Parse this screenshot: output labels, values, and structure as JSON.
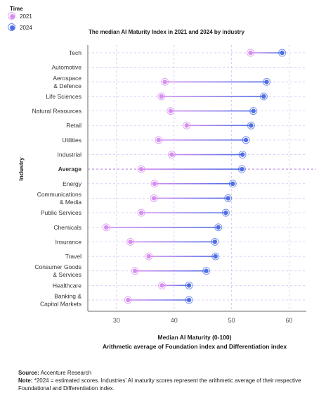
{
  "legend": {
    "title": "Time",
    "items": [
      {
        "label": "2021",
        "color": "#d78ef0"
      },
      {
        "label": "2024",
        "color": "#4f6ee6"
      }
    ]
  },
  "footer": {
    "source_label": "Source:",
    "source_text": "Accenture Research",
    "note_label": "Note:",
    "note_text": "*2024 = estimated scores. Industries' AI maturity scores represent the arithmetic average of their respective Foundational and Differentiation index."
  },
  "chart_data": {
    "type": "dumbbell",
    "title": "The median AI Maturity Index in 2021 and 2024 by industry",
    "xlabel": "Median AI Maturity (0-100)",
    "xlabel_sub": "Arithmetic average of  Foundation index and Differentiation index",
    "ylabel": "Industry",
    "xlim": [
      25,
      63
    ],
    "xticks": [
      30,
      40,
      50,
      60
    ],
    "grid": true,
    "legend_position": "top-left",
    "highlight_category": "Average",
    "series": [
      {
        "name": "2021",
        "color": "#d78ef0"
      },
      {
        "name": "2024",
        "color": "#4f6ee6"
      }
    ],
    "categories": [
      {
        "label": [
          "Tech"
        ],
        "v2021": 53.3,
        "v2024": 58.8
      },
      {
        "label": [
          "Automotive"
        ],
        "v2021": null,
        "v2024": null
      },
      {
        "label": [
          "Aerospace",
          "& Defence"
        ],
        "v2021": 38.4,
        "v2024": 56.1
      },
      {
        "label": [
          "Life Sciences"
        ],
        "v2021": 37.8,
        "v2024": 55.6
      },
      {
        "label": [
          "Natural Resources"
        ],
        "v2021": 39.4,
        "v2024": 53.8
      },
      {
        "label": [
          "Retail"
        ],
        "v2021": 42.2,
        "v2024": 53.4
      },
      {
        "label": [
          "Utilities"
        ],
        "v2021": 37.3,
        "v2024": 52.5
      },
      {
        "label": [
          "Industrial"
        ],
        "v2021": 39.6,
        "v2024": 51.9
      },
      {
        "label": [
          "Average"
        ],
        "v2021": 34.3,
        "v2024": 51.8
      },
      {
        "label": [
          "Energy"
        ],
        "v2021": 36.6,
        "v2024": 50.2
      },
      {
        "label": [
          "Communications",
          "& Media"
        ],
        "v2021": 36.5,
        "v2024": 49.4
      },
      {
        "label": [
          "Public Services"
        ],
        "v2021": 34.3,
        "v2024": 49.0
      },
      {
        "label": [
          "Chemicals"
        ],
        "v2021": 28.2,
        "v2024": 47.7
      },
      {
        "label": [
          "Insurance"
        ],
        "v2021": 32.4,
        "v2024": 47.1
      },
      {
        "label": [
          "Travel"
        ],
        "v2021": 35.6,
        "v2024": 47.2
      },
      {
        "label": [
          "Consumer Goods",
          "& Services"
        ],
        "v2021": 33.2,
        "v2024": 45.6
      },
      {
        "label": [
          "Healthcare"
        ],
        "v2021": 37.9,
        "v2024": 42.6
      },
      {
        "label": [
          "Banking &",
          "Capital Markets"
        ],
        "v2021": 32.0,
        "v2024": 42.6
      }
    ]
  }
}
